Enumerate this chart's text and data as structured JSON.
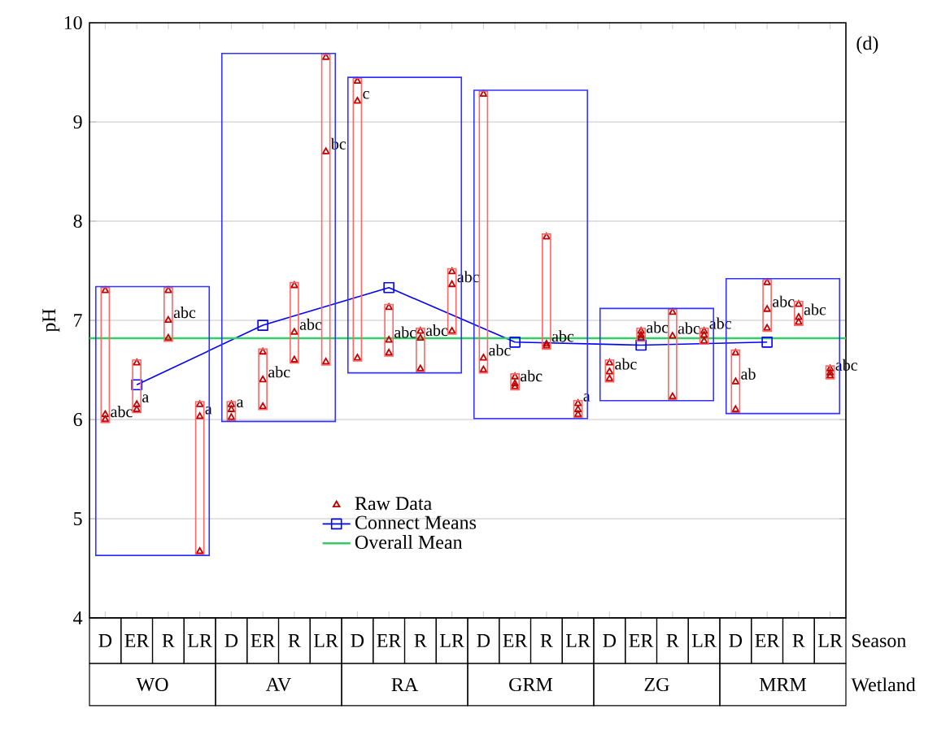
{
  "chart_data": {
    "type": "scatter",
    "title": "(d)",
    "ylabel": "pH",
    "xlabel": "Season",
    "categories": [
      "D",
      "ER",
      "R",
      "LR",
      "D",
      "ER",
      "R",
      "LR",
      "D",
      "ER",
      "R",
      "LR",
      "D",
      "ER",
      "R",
      "LR",
      "D",
      "ER",
      "R",
      "LR",
      "D",
      "ER",
      "R",
      "LR"
    ],
    "series": [
      {
        "name": "Raw Data",
        "color": "#c00000",
        "marker": "triangle",
        "values": [
          7.3,
          6.57,
          7.3,
          6.15,
          6.15,
          6.68,
          7.35,
          9.65,
          9.41,
          7.13,
          6.89,
          7.49,
          9.28,
          6.43,
          7.84,
          6.16,
          6.57,
          6.89,
          7.08,
          6.89,
          6.67,
          7.38,
          7.16,
          6.51
        ],
        "value_labels": [
          null,
          null,
          null,
          null,
          null,
          null,
          null,
          null,
          null,
          null,
          null,
          null,
          null,
          null,
          null,
          "a",
          null,
          null,
          null,
          "abc",
          null,
          null,
          null,
          null
        ]
      },
      {
        "color": "#c00000",
        "marker": "triangle",
        "values": [
          6.05,
          6.15,
          7.0,
          6.03,
          6.1,
          6.4,
          6.88,
          8.7,
          9.21,
          6.8,
          6.82,
          7.36,
          6.62,
          6.36,
          6.76,
          6.1,
          6.48,
          6.85,
          6.84,
          6.85,
          6.38,
          7.11,
          7.03,
          6.47
        ],
        "value_labels": [
          null,
          "a",
          "abc",
          "a",
          "a",
          "abc",
          "abc",
          "bc",
          "c",
          "abc",
          "abc",
          "abc",
          "abc",
          "abc",
          "abc",
          null,
          "abc",
          "abc",
          "abc",
          null,
          "ab",
          "abc",
          "abc",
          "abc"
        ]
      },
      {
        "color": "#c00000",
        "marker": "triangle",
        "values": [
          6.0,
          6.1,
          6.82,
          4.67,
          6.02,
          6.13,
          6.6,
          6.58,
          6.62,
          6.67,
          6.51,
          6.89,
          6.5,
          6.33,
          6.74,
          6.05,
          6.41,
          6.82,
          6.23,
          6.79,
          6.1,
          6.92,
          6.98,
          6.44
        ],
        "value_labels": [
          "abc",
          null,
          null,
          null,
          null,
          null,
          null,
          null,
          null,
          null,
          null,
          null,
          null,
          null,
          null,
          null,
          null,
          null,
          null,
          null,
          null,
          null,
          null,
          null
        ]
      },
      {
        "name": "Connect Means",
        "type": "line",
        "color": "#0000ff",
        "marker": "square",
        "values": [
          null,
          6.35,
          null,
          null,
          null,
          6.95,
          null,
          null,
          null,
          7.33,
          null,
          null,
          null,
          6.78,
          null,
          null,
          null,
          6.75,
          null,
          null,
          null,
          6.78,
          null,
          null
        ]
      }
    ],
    "ref_lines": [
      {
        "axis": "y",
        "value": 6.82,
        "label": "Overall Mean",
        "color": "#33cc66"
      }
    ],
    "ylim": [
      4,
      10
    ],
    "yticks": [
      4,
      5,
      6,
      7,
      8,
      9,
      10
    ],
    "grid": "y",
    "legend": "bottom",
    "annotations": [
      "Wetland",
      "WO",
      "AV",
      "RA",
      "GRM",
      "ZG",
      "MRM"
    ]
  }
}
